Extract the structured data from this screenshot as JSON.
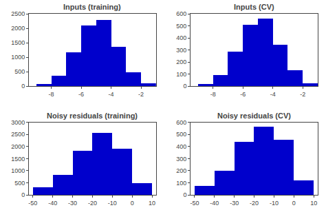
{
  "chart_data": [
    {
      "type": "histogram",
      "title": "Inputs (training)",
      "bins": [
        -9,
        -8,
        -7,
        -6,
        -5,
        -4,
        -3,
        -2,
        -1
      ],
      "values": [
        80,
        370,
        1170,
        2100,
        2280,
        1360,
        480,
        100
      ],
      "color": "#0000CC",
      "grid": false,
      "xlim": [
        -9.5,
        -1
      ],
      "xticks": [
        -8,
        -6,
        -4,
        -2
      ],
      "ylim": [
        0,
        2500
      ],
      "yticks": [
        0,
        500,
        1000,
        1500,
        2000,
        2500
      ]
    },
    {
      "type": "histogram",
      "title": "Inputs (CV)",
      "bins": [
        -9,
        -8,
        -7,
        -6,
        -5,
        -4,
        -3,
        -2,
        -1
      ],
      "values": [
        18,
        95,
        285,
        510,
        560,
        345,
        130,
        25
      ],
      "color": "#0000CC",
      "grid": false,
      "xlim": [
        -9.5,
        -1
      ],
      "xticks": [
        -8,
        -6,
        -4,
        -2
      ],
      "ylim": [
        0,
        600
      ],
      "yticks": [
        0,
        100,
        200,
        300,
        400,
        500,
        600
      ]
    },
    {
      "type": "histogram",
      "title": "Noisy residuals (training)",
      "bins": [
        -50,
        -40,
        -30,
        -20,
        -10,
        0,
        10
      ],
      "values": [
        310,
        820,
        1820,
        2580,
        1920,
        480
      ],
      "color": "#0000CC",
      "grid": false,
      "xlim": [
        -52,
        12
      ],
      "xticks": [
        -50,
        -40,
        -30,
        -20,
        -10,
        0,
        10
      ],
      "ylim": [
        0,
        3000
      ],
      "yticks": [
        0,
        500,
        1000,
        1500,
        2000,
        2500,
        3000
      ]
    },
    {
      "type": "histogram",
      "title": "Noisy residuals (CV)",
      "bins": [
        -50,
        -40,
        -30,
        -20,
        -10,
        0,
        10
      ],
      "values": [
        75,
        200,
        440,
        565,
        460,
        120
      ],
      "color": "#0000CC",
      "grid": false,
      "xlim": [
        -52,
        12
      ],
      "xticks": [
        -50,
        -40,
        -30,
        -20,
        -10,
        0,
        10
      ],
      "ylim": [
        0,
        600
      ],
      "yticks": [
        0,
        100,
        200,
        300,
        400,
        500,
        600
      ]
    }
  ]
}
